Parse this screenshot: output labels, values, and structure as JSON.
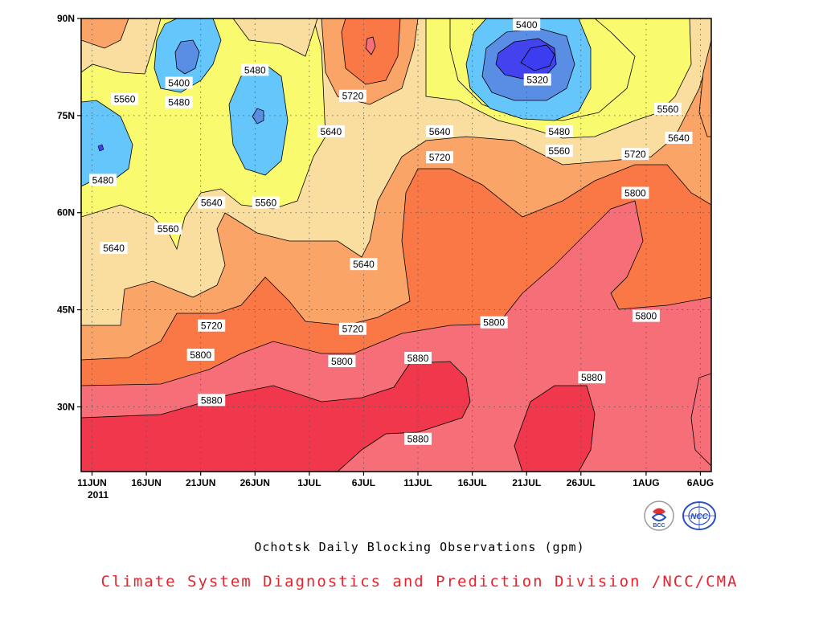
{
  "chart_data": {
    "type": "heatmap",
    "title": "Ochotsk Daily Blocking Observations (gpm)",
    "credit": "Climate System Diagnostics and Prediction Division /NCC/CMA",
    "x_ticks": [
      "11JUN",
      "16JUN",
      "21JUN",
      "26JUN",
      "1JUL",
      "6JUL",
      "11JUL",
      "16JUL",
      "21JUL",
      "26JUL",
      "1AUG",
      "6AUG"
    ],
    "x_tick_day_offset": [
      0,
      5,
      10,
      15,
      20,
      25,
      30,
      35,
      40,
      45,
      51,
      56
    ],
    "year_label": "2011",
    "y_ticks": [
      "30N",
      "45N",
      "60N",
      "75N",
      "90N"
    ],
    "y_tick_values": [
      30,
      45,
      60,
      75,
      90
    ],
    "xlim_day_offset": [
      -1,
      57
    ],
    "ylim": [
      20,
      90
    ],
    "grid": true,
    "levels": [
      5320,
      5400,
      5480,
      5560,
      5640,
      5720,
      5800,
      5880
    ],
    "level_colors": {
      "lt5320": "#4242ee",
      "5320": "#5a8ee4",
      "5400": "#64c6fa",
      "5480": "#fafa6e",
      "5560": "#fadea0",
      "5640": "#fba468",
      "5720": "#fa7846",
      "5800": "#f56e78",
      "5880": "#f0374b"
    },
    "contour_labels": [
      {
        "text": "5400",
        "day": 40,
        "lat": 89
      },
      {
        "text": "5480",
        "day": 15,
        "lat": 82
      },
      {
        "text": "5400",
        "day": 8,
        "lat": 80
      },
      {
        "text": "5560",
        "day": 3,
        "lat": 77.5
      },
      {
        "text": "5480",
        "day": 8,
        "lat": 77
      },
      {
        "text": "5720",
        "day": 24,
        "lat": 78
      },
      {
        "text": "5320",
        "day": 41,
        "lat": 80.5
      },
      {
        "text": "5560",
        "day": 53,
        "lat": 76
      },
      {
        "text": "5640",
        "day": 22,
        "lat": 72.5
      },
      {
        "text": "5640",
        "day": 32,
        "lat": 72.5
      },
      {
        "text": "5480",
        "day": 43,
        "lat": 72.5
      },
      {
        "text": "5640",
        "day": 54,
        "lat": 71.5
      },
      {
        "text": "5560",
        "day": 43,
        "lat": 69.5
      },
      {
        "text": "5720",
        "day": 32,
        "lat": 68.5
      },
      {
        "text": "5720",
        "day": 50,
        "lat": 69
      },
      {
        "text": "5480",
        "day": 1,
        "lat": 65
      },
      {
        "text": "5800",
        "day": 50,
        "lat": 63
      },
      {
        "text": "5640",
        "day": 11,
        "lat": 61.5
      },
      {
        "text": "5560",
        "day": 16,
        "lat": 61.5
      },
      {
        "text": "5560",
        "day": 7,
        "lat": 57.5
      },
      {
        "text": "5640",
        "day": 2,
        "lat": 54.5
      },
      {
        "text": "5640",
        "day": 25,
        "lat": 52
      },
      {
        "text": "5720",
        "day": 11,
        "lat": 42.5
      },
      {
        "text": "5800",
        "day": 37,
        "lat": 43
      },
      {
        "text": "5800",
        "day": 51,
        "lat": 44
      },
      {
        "text": "5720",
        "day": 24,
        "lat": 42
      },
      {
        "text": "5800",
        "day": 10,
        "lat": 38
      },
      {
        "text": "5800",
        "day": 23,
        "lat": 37
      },
      {
        "text": "5880",
        "day": 30,
        "lat": 37.5
      },
      {
        "text": "5880",
        "day": 46,
        "lat": 34.5
      },
      {
        "text": "5880",
        "day": 11,
        "lat": 31
      },
      {
        "text": "5880",
        "day": 30,
        "lat": 25
      }
    ]
  },
  "logos": {
    "left": {
      "icon": "bcc-logo-icon",
      "text": "BCC"
    },
    "right": {
      "icon": "ncc-logo-icon",
      "text": "NCC"
    }
  }
}
